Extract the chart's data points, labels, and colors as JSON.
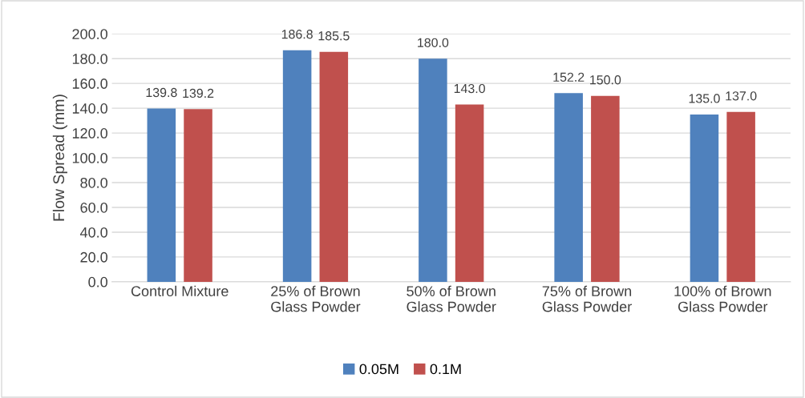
{
  "chart_data": {
    "type": "bar",
    "ylabel": "Flow Spread (mm)",
    "categories": [
      "Control Mixture",
      "25% of Brown\nGlass Powder",
      "50% of Brown\nGlass Powder",
      "75% of Brown\nGlass Powder",
      "100% of Brown\nGlass Powder"
    ],
    "series": [
      {
        "name": "0.05M",
        "color": "#4f81bd",
        "values": [
          139.8,
          186.8,
          180.0,
          152.2,
          135.0
        ],
        "value_labels": [
          "139.8",
          "186.8",
          "180.0",
          "152.2",
          "135.0"
        ]
      },
      {
        "name": "0.1M",
        "color": "#c0504d",
        "values": [
          139.2,
          185.5,
          143.0,
          150.0,
          137.0
        ],
        "value_labels": [
          "139.2",
          "185.5",
          "143.0",
          "150.0",
          "137.0"
        ]
      }
    ],
    "ylim": [
      0,
      200
    ],
    "yticks": [
      {
        "value": 0,
        "label": "0.0"
      },
      {
        "value": 20,
        "label": "20.0"
      },
      {
        "value": 40,
        "label": "40.0"
      },
      {
        "value": 60,
        "label": "60.0"
      },
      {
        "value": 80,
        "label": "80.0"
      },
      {
        "value": 100,
        "label": "100.0"
      },
      {
        "value": 120,
        "label": "120.0"
      },
      {
        "value": 140,
        "label": "140.0"
      },
      {
        "value": 160,
        "label": "160.0"
      },
      {
        "value": 180,
        "label": "180.0"
      },
      {
        "value": 200,
        "label": "200.0"
      }
    ],
    "grid": "y",
    "legend": "bottom"
  }
}
